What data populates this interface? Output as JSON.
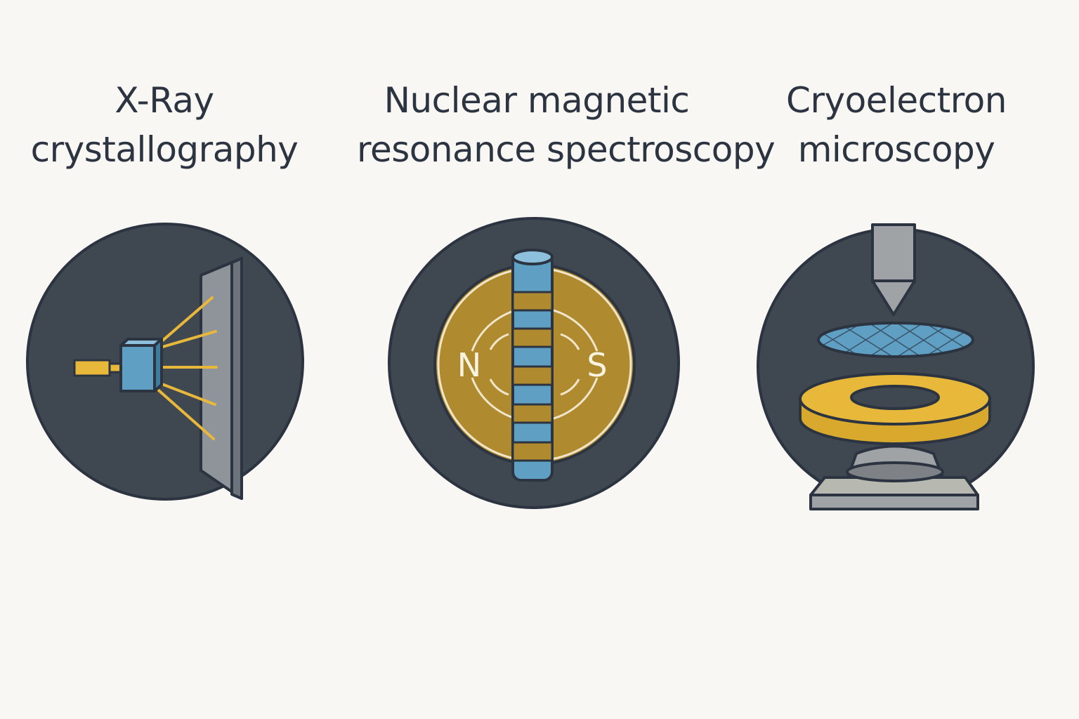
{
  "methods": [
    {
      "id": "xray",
      "title_line1": "X-Ray",
      "title_line2": "crystallography",
      "icon": "xray-crystallography-icon"
    },
    {
      "id": "nmr",
      "title_line1": "Nuclear magnetic",
      "title_line2": "resonance spectroscopy",
      "icon": "nmr-magnet-icon",
      "pole_north": "N",
      "pole_south": "S"
    },
    {
      "id": "cryoem",
      "title_line1": "Cryoelectron",
      "title_line2": "microscopy",
      "icon": "cryo-em-microscope-icon"
    }
  ],
  "colors": {
    "background": "#f9f7f3",
    "circle": "#3f4751",
    "outline": "#2b3440",
    "blue": "#5f9fc4",
    "gold": "#e8b83a",
    "bronze": "#b08a2e",
    "gray": "#9fa3a6"
  }
}
